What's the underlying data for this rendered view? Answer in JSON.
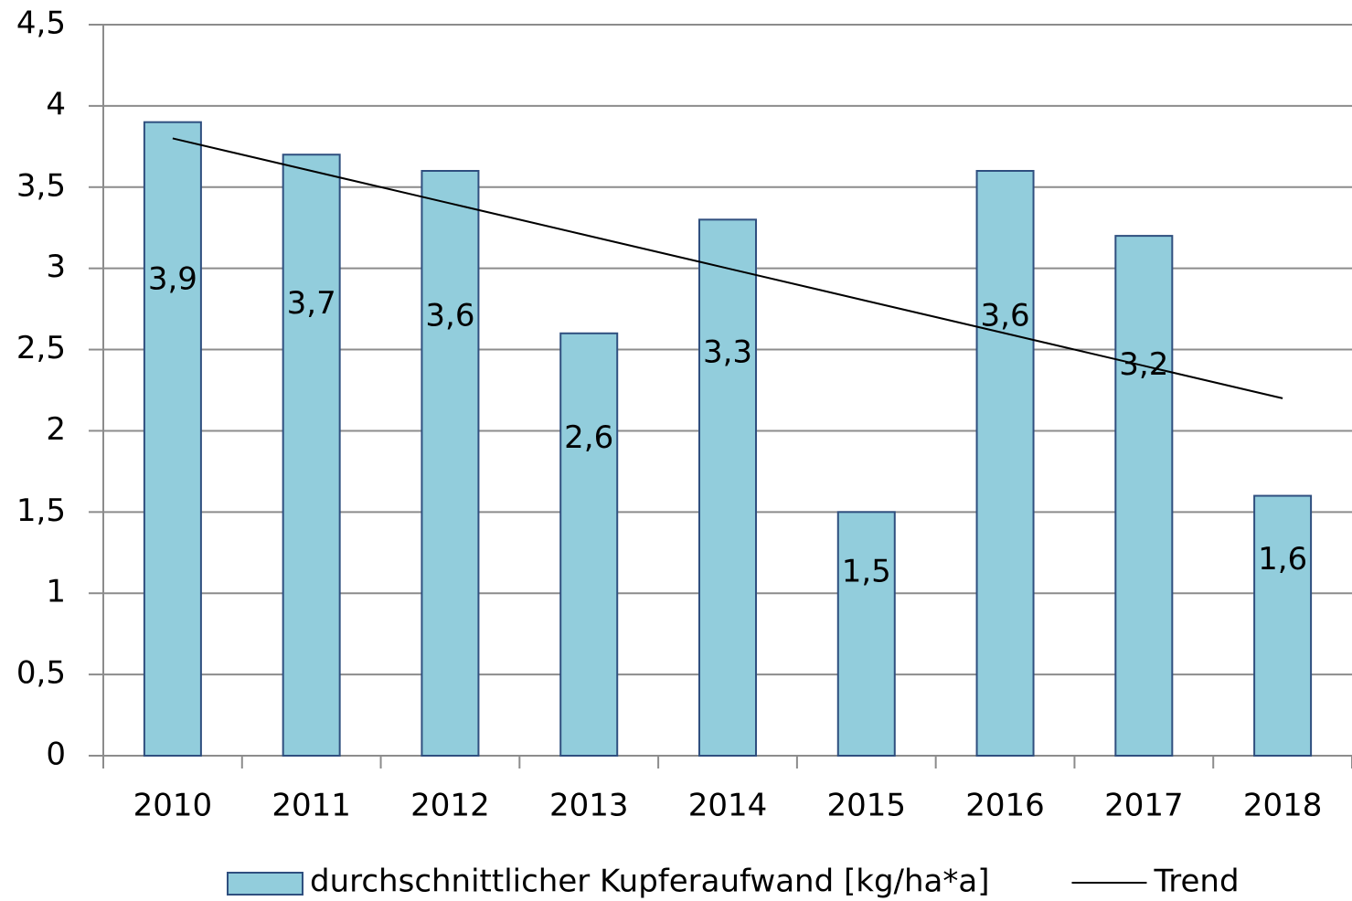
{
  "chart_data": {
    "type": "bar",
    "categories": [
      "2010",
      "2011",
      "2012",
      "2013",
      "2014",
      "2015",
      "2016",
      "2017",
      "2018"
    ],
    "series": [
      {
        "name": "durchschnittlicher Kupferaufwand [kg/ha*a]",
        "color": "#92cddc",
        "values": [
          3.9,
          3.7,
          3.6,
          2.6,
          3.3,
          1.5,
          3.6,
          3.2,
          1.6
        ],
        "value_labels": [
          "3,9",
          "3,7",
          "3,6",
          "2,6",
          "3,3",
          "1,5",
          "3,6",
          "3,2",
          "1,6"
        ]
      },
      {
        "name": "Trend",
        "color": "#000000",
        "type": "line",
        "values": [
          3.8,
          3.6,
          3.4,
          3.2,
          3.0,
          2.8,
          2.6,
          2.4,
          2.2
        ]
      }
    ],
    "ylim": [
      0,
      4.5
    ],
    "yticks": [
      0,
      {
        "value": 0.5,
        "label": "0,5"
      },
      1,
      {
        "value": 1.5,
        "label": "1,5"
      },
      2,
      {
        "value": 2.5,
        "label": "2,5"
      },
      3,
      {
        "value": 3.5,
        "label": "3,5"
      },
      4,
      {
        "value": 4.5,
        "label": "4,5"
      }
    ],
    "grid": true,
    "legend": "bottom"
  }
}
